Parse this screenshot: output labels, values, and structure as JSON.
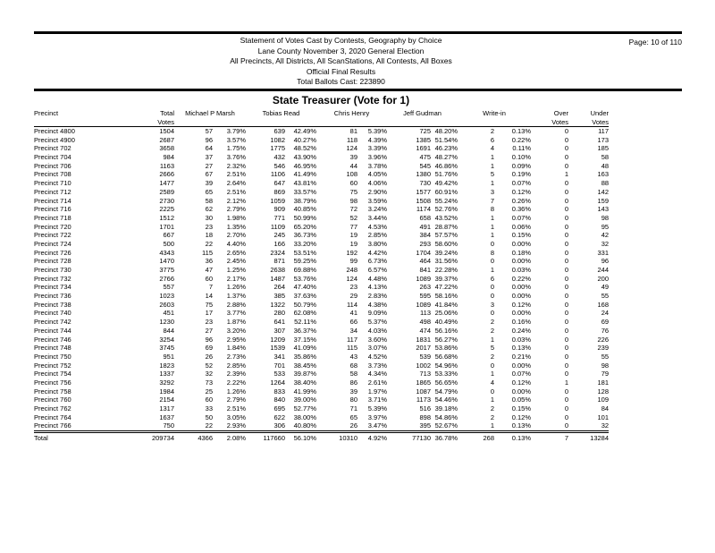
{
  "report_header": {
    "lines": [
      "Statement of Votes Cast by Contests, Geography by Choice",
      "Lane County November 3, 2020 General Election",
      "All Precincts, All Districts, All ScanStations, All Contests, All Boxes",
      "Official Final Results",
      "Total Ballots Cast: 223890"
    ],
    "page_number": "Page: 10 of 110"
  },
  "contest": {
    "title": "State Treasurer (Vote for 1)"
  },
  "table": {
    "column_headers": {
      "precinct": "Precinct",
      "total": "Total",
      "votes_sub": "Votes",
      "candidates": [
        "Michael P Marsh",
        "Tobias Read",
        "Chris Henry",
        "Jeff Gudman",
        "Write-in"
      ],
      "over": "Over",
      "under": "Under"
    },
    "rows": [
      [
        "Precinct 4800",
        "1504",
        "57",
        "3.79%",
        "639",
        "42.49%",
        "81",
        "5.39%",
        "725",
        "48.20%",
        "2",
        "0.13%",
        "0",
        "117"
      ],
      [
        "Precinct 4900",
        "2687",
        "96",
        "3.57%",
        "1082",
        "40.27%",
        "118",
        "4.39%",
        "1385",
        "51.54%",
        "6",
        "0.22%",
        "0",
        "173"
      ],
      [
        "Precinct 702",
        "3658",
        "64",
        "1.75%",
        "1775",
        "48.52%",
        "124",
        "3.39%",
        "1691",
        "46.23%",
        "4",
        "0.11%",
        "0",
        "185"
      ],
      [
        "Precinct 704",
        "984",
        "37",
        "3.76%",
        "432",
        "43.90%",
        "39",
        "3.96%",
        "475",
        "48.27%",
        "1",
        "0.10%",
        "0",
        "58"
      ],
      [
        "Precinct 706",
        "1163",
        "27",
        "2.32%",
        "546",
        "46.95%",
        "44",
        "3.78%",
        "545",
        "46.86%",
        "1",
        "0.09%",
        "0",
        "48"
      ],
      [
        "Precinct 708",
        "2666",
        "67",
        "2.51%",
        "1106",
        "41.49%",
        "108",
        "4.05%",
        "1380",
        "51.76%",
        "5",
        "0.19%",
        "1",
        "163"
      ],
      [
        "Precinct 710",
        "1477",
        "39",
        "2.64%",
        "647",
        "43.81%",
        "60",
        "4.06%",
        "730",
        "49.42%",
        "1",
        "0.07%",
        "0",
        "88"
      ],
      [
        "Precinct 712",
        "2589",
        "65",
        "2.51%",
        "869",
        "33.57%",
        "75",
        "2.90%",
        "1577",
        "60.91%",
        "3",
        "0.12%",
        "0",
        "142"
      ],
      [
        "Precinct 714",
        "2730",
        "58",
        "2.12%",
        "1059",
        "38.79%",
        "98",
        "3.59%",
        "1508",
        "55.24%",
        "7",
        "0.26%",
        "0",
        "159"
      ],
      [
        "Precinct 716",
        "2225",
        "62",
        "2.79%",
        "909",
        "40.85%",
        "72",
        "3.24%",
        "1174",
        "52.76%",
        "8",
        "0.36%",
        "0",
        "143"
      ],
      [
        "Precinct 718",
        "1512",
        "30",
        "1.98%",
        "771",
        "50.99%",
        "52",
        "3.44%",
        "658",
        "43.52%",
        "1",
        "0.07%",
        "0",
        "98"
      ],
      [
        "Precinct 720",
        "1701",
        "23",
        "1.35%",
        "1109",
        "65.20%",
        "77",
        "4.53%",
        "491",
        "28.87%",
        "1",
        "0.06%",
        "0",
        "95"
      ],
      [
        "Precinct 722",
        "667",
        "18",
        "2.70%",
        "245",
        "36.73%",
        "19",
        "2.85%",
        "384",
        "57.57%",
        "1",
        "0.15%",
        "0",
        "42"
      ],
      [
        "Precinct 724",
        "500",
        "22",
        "4.40%",
        "166",
        "33.20%",
        "19",
        "3.80%",
        "293",
        "58.60%",
        "0",
        "0.00%",
        "0",
        "32"
      ],
      [
        "Precinct 726",
        "4343",
        "115",
        "2.65%",
        "2324",
        "53.51%",
        "192",
        "4.42%",
        "1704",
        "39.24%",
        "8",
        "0.18%",
        "0",
        "331"
      ],
      [
        "Precinct 728",
        "1470",
        "36",
        "2.45%",
        "871",
        "59.25%",
        "99",
        "6.73%",
        "464",
        "31.56%",
        "0",
        "0.00%",
        "0",
        "96"
      ],
      [
        "Precinct 730",
        "3775",
        "47",
        "1.25%",
        "2638",
        "69.88%",
        "248",
        "6.57%",
        "841",
        "22.28%",
        "1",
        "0.03%",
        "0",
        "244"
      ],
      [
        "Precinct 732",
        "2766",
        "60",
        "2.17%",
        "1487",
        "53.76%",
        "124",
        "4.48%",
        "1089",
        "39.37%",
        "6",
        "0.22%",
        "0",
        "200"
      ],
      [
        "Precinct 734",
        "557",
        "7",
        "1.26%",
        "264",
        "47.40%",
        "23",
        "4.13%",
        "263",
        "47.22%",
        "0",
        "0.00%",
        "0",
        "49"
      ],
      [
        "Precinct 736",
        "1023",
        "14",
        "1.37%",
        "385",
        "37.63%",
        "29",
        "2.83%",
        "595",
        "58.16%",
        "0",
        "0.00%",
        "0",
        "55"
      ],
      [
        "Precinct 738",
        "2603",
        "75",
        "2.88%",
        "1322",
        "50.79%",
        "114",
        "4.38%",
        "1089",
        "41.84%",
        "3",
        "0.12%",
        "0",
        "168"
      ],
      [
        "Precinct 740",
        "451",
        "17",
        "3.77%",
        "280",
        "62.08%",
        "41",
        "9.09%",
        "113",
        "25.06%",
        "0",
        "0.00%",
        "0",
        "24"
      ],
      [
        "Precinct 742",
        "1230",
        "23",
        "1.87%",
        "641",
        "52.11%",
        "66",
        "5.37%",
        "498",
        "40.49%",
        "2",
        "0.16%",
        "0",
        "69"
      ],
      [
        "Precinct 744",
        "844",
        "27",
        "3.20%",
        "307",
        "36.37%",
        "34",
        "4.03%",
        "474",
        "56.16%",
        "2",
        "0.24%",
        "0",
        "76"
      ],
      [
        "Precinct 746",
        "3254",
        "96",
        "2.95%",
        "1209",
        "37.15%",
        "117",
        "3.60%",
        "1831",
        "56.27%",
        "1",
        "0.03%",
        "0",
        "226"
      ],
      [
        "Precinct 748",
        "3745",
        "69",
        "1.84%",
        "1539",
        "41.09%",
        "115",
        "3.07%",
        "2017",
        "53.86%",
        "5",
        "0.13%",
        "0",
        "239"
      ],
      [
        "Precinct 750",
        "951",
        "26",
        "2.73%",
        "341",
        "35.86%",
        "43",
        "4.52%",
        "539",
        "56.68%",
        "2",
        "0.21%",
        "0",
        "55"
      ],
      [
        "Precinct 752",
        "1823",
        "52",
        "2.85%",
        "701",
        "38.45%",
        "68",
        "3.73%",
        "1002",
        "54.96%",
        "0",
        "0.00%",
        "0",
        "98"
      ],
      [
        "Precinct 754",
        "1337",
        "32",
        "2.39%",
        "533",
        "39.87%",
        "58",
        "4.34%",
        "713",
        "53.33%",
        "1",
        "0.07%",
        "0",
        "79"
      ],
      [
        "Precinct 756",
        "3292",
        "73",
        "2.22%",
        "1264",
        "38.40%",
        "86",
        "2.61%",
        "1865",
        "56.65%",
        "4",
        "0.12%",
        "1",
        "181"
      ],
      [
        "Precinct 758",
        "1984",
        "25",
        "1.26%",
        "833",
        "41.99%",
        "39",
        "1.97%",
        "1087",
        "54.79%",
        "0",
        "0.00%",
        "0",
        "128"
      ],
      [
        "Precinct 760",
        "2154",
        "60",
        "2.79%",
        "840",
        "39.00%",
        "80",
        "3.71%",
        "1173",
        "54.46%",
        "1",
        "0.05%",
        "0",
        "109"
      ],
      [
        "Precinct 762",
        "1317",
        "33",
        "2.51%",
        "695",
        "52.77%",
        "71",
        "5.39%",
        "516",
        "39.18%",
        "2",
        "0.15%",
        "0",
        "84"
      ],
      [
        "Precinct 764",
        "1637",
        "50",
        "3.05%",
        "622",
        "38.00%",
        "65",
        "3.97%",
        "898",
        "54.86%",
        "2",
        "0.12%",
        "0",
        "101"
      ],
      [
        "Precinct 766",
        "750",
        "22",
        "2.93%",
        "306",
        "40.80%",
        "26",
        "3.47%",
        "395",
        "52.67%",
        "1",
        "0.13%",
        "0",
        "32"
      ]
    ],
    "total_row": [
      "Total",
      "209734",
      "4366",
      "2.08%",
      "117660",
      "56.10%",
      "10310",
      "4.92%",
      "77130",
      "36.78%",
      "268",
      "0.13%",
      "7",
      "13284"
    ]
  },
  "colors": {
    "text": "#000000",
    "rule": "#000000",
    "background": "#ffffff"
  }
}
